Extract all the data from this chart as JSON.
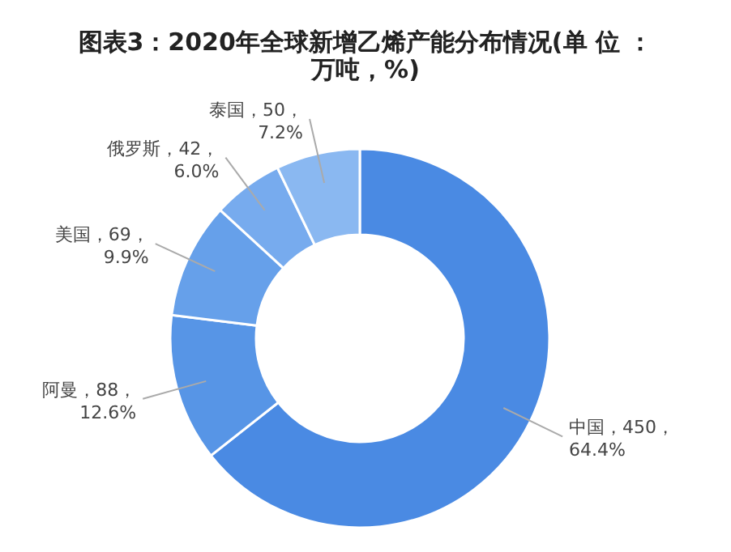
{
  "chart_data": {
    "type": "donut",
    "title": "图表3：2020年全球新增乙烯产能分布情况(单 位 ：万吨，%)",
    "categories": [
      "中国",
      "阿曼",
      "美国",
      "俄罗斯",
      "泰国"
    ],
    "values": [
      450,
      88,
      69,
      42,
      50
    ],
    "value_labels": [
      "450，\n64.4%",
      "88，\n12.6%",
      "69，\n9.9%",
      "42，\n6.0%",
      "50，\n7.2%"
    ],
    "colors": [
      "#4a8ae3",
      "#5795e6",
      "#66a0ea",
      "#77abee",
      "#8ab8f1"
    ]
  }
}
